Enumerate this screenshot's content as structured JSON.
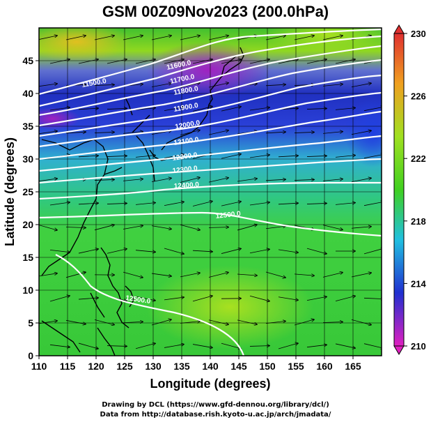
{
  "title": "GSM 00Z09Nov2023 (200.0hPa)",
  "x_axis": {
    "label": "Longitude (degrees)",
    "ticks": [
      "110",
      "115",
      "120",
      "125",
      "130",
      "135",
      "140",
      "145",
      "150",
      "155",
      "160",
      "165"
    ]
  },
  "y_axis": {
    "label": "Latitude (degrees)",
    "ticks": [
      "0",
      "5",
      "10",
      "15",
      "20",
      "25",
      "30",
      "35",
      "40",
      "45"
    ]
  },
  "colorbar": {
    "ticks": [
      "210",
      "214",
      "218",
      "222",
      "226",
      "230"
    ],
    "colors": [
      "#e020c0",
      "#2030d0",
      "#20c0e0",
      "#40d020",
      "#a0e020",
      "#f0a020",
      "#e03030"
    ]
  },
  "contour_labels": [
    "11500.0",
    "11600.0",
    "11700.0",
    "11800.0",
    "11900.0",
    "12000.0",
    "12100.0",
    "12200.0",
    "12300.0",
    "12400.0",
    "12500.0",
    "12500.0"
  ],
  "credits": {
    "line1": "Drawing by DCL (https://www.gfd-dennou.org/library/dcl/)",
    "line2": "Data from http://database.rish.kyoto-u.ac.jp/arch/jmadata/"
  }
}
